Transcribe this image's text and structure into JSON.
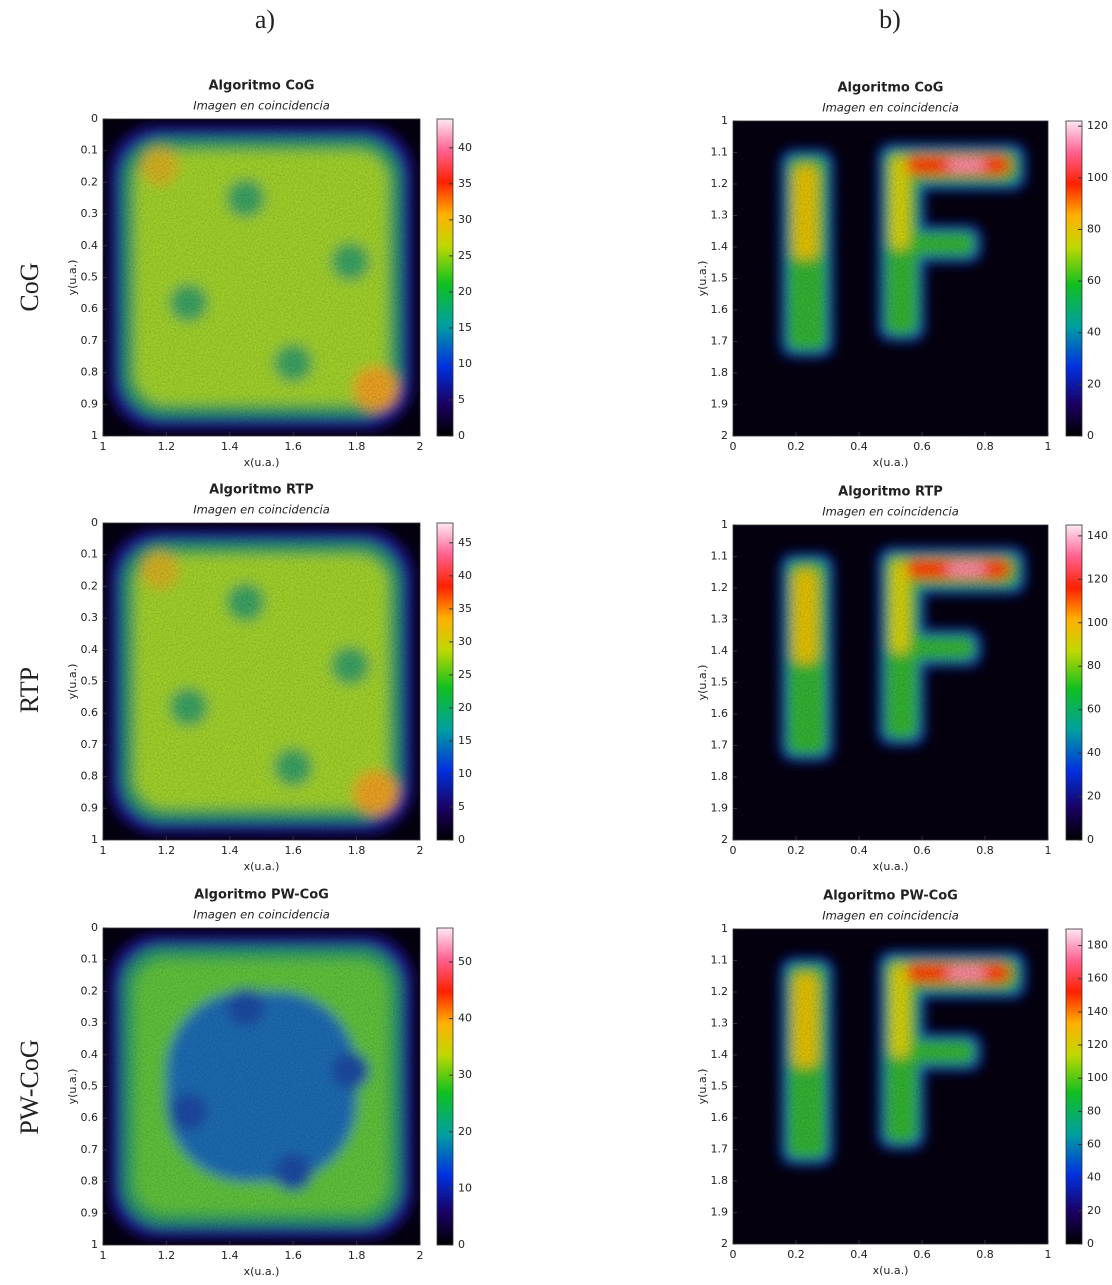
{
  "column_labels": [
    "a)",
    "b)"
  ],
  "row_labels": [
    "CoG",
    "RTP",
    "PW-CoG"
  ],
  "chart_data": [
    {
      "type": "heatmap",
      "title": "Algoritmo CoG",
      "subtitle": "Imagen en coincidencia",
      "xlabel": "x(u.a.)",
      "ylabel": "y(u.a.)",
      "xlim": [
        1,
        2
      ],
      "xticks": [
        1,
        1.2,
        1.4,
        1.6,
        1.8,
        2
      ],
      "ylim": [
        0,
        1
      ],
      "yticks": [
        0,
        0.1,
        0.2,
        0.3,
        0.4,
        0.5,
        0.6,
        0.7,
        0.8,
        0.9,
        1
      ],
      "y_reversed": true,
      "clim": [
        0,
        44
      ],
      "cticks": [
        0,
        5,
        10,
        15,
        20,
        25,
        30,
        35,
        40
      ]
    },
    {
      "type": "heatmap",
      "title": "Algoritmo CoG",
      "subtitle": "Imagen en coincidencia",
      "xlabel": "x(u.a.)",
      "ylabel": "y(u.a.)",
      "xlim": [
        0,
        1
      ],
      "xticks": [
        0,
        0.2,
        0.4,
        0.6,
        0.8,
        1
      ],
      "ylim": [
        1,
        2
      ],
      "yticks": [
        1,
        1.1,
        1.2,
        1.3,
        1.4,
        1.5,
        1.6,
        1.7,
        1.8,
        1.9,
        2
      ],
      "y_reversed": true,
      "clim": [
        0,
        122
      ],
      "cticks": [
        0,
        20,
        40,
        60,
        80,
        100,
        120
      ]
    },
    {
      "type": "heatmap",
      "title": "Algoritmo RTP",
      "subtitle": "Imagen en coincidencia",
      "xlabel": "x(u.a.)",
      "ylabel": "y(u.a.)",
      "xlim": [
        1,
        2
      ],
      "xticks": [
        1,
        1.2,
        1.4,
        1.6,
        1.8,
        2
      ],
      "ylim": [
        0,
        1
      ],
      "yticks": [
        0,
        0.1,
        0.2,
        0.3,
        0.4,
        0.5,
        0.6,
        0.7,
        0.8,
        0.9,
        1
      ],
      "y_reversed": true,
      "clim": [
        0,
        48
      ],
      "cticks": [
        0,
        5,
        10,
        15,
        20,
        25,
        30,
        35,
        40,
        45
      ]
    },
    {
      "type": "heatmap",
      "title": "Algoritmo RTP",
      "subtitle": "Imagen en coincidencia",
      "xlabel": "x(u.a.)",
      "ylabel": "y(u.a.)",
      "xlim": [
        0,
        1
      ],
      "xticks": [
        0,
        0.2,
        0.4,
        0.6,
        0.8,
        1
      ],
      "ylim": [
        1,
        2
      ],
      "yticks": [
        1,
        1.1,
        1.2,
        1.3,
        1.4,
        1.5,
        1.6,
        1.7,
        1.8,
        1.9,
        2
      ],
      "y_reversed": true,
      "clim": [
        0,
        145
      ],
      "cticks": [
        0,
        20,
        40,
        60,
        80,
        100,
        120,
        140
      ]
    },
    {
      "type": "heatmap",
      "title": "Algoritmo PW-CoG",
      "subtitle": "Imagen en coincidencia",
      "xlabel": "x(u.a.)",
      "ylabel": "y(u.a.)",
      "xlim": [
        1,
        2
      ],
      "xticks": [
        1,
        1.2,
        1.4,
        1.6,
        1.8,
        2
      ],
      "ylim": [
        0,
        1
      ],
      "yticks": [
        0,
        0.1,
        0.2,
        0.3,
        0.4,
        0.5,
        0.6,
        0.7,
        0.8,
        0.9,
        1
      ],
      "y_reversed": true,
      "clim": [
        0,
        56
      ],
      "cticks": [
        0,
        10,
        20,
        30,
        40,
        50
      ]
    },
    {
      "type": "heatmap",
      "title": "Algoritmo PW-CoG",
      "subtitle": "Imagen en coincidencia",
      "xlabel": "x(u.a.)",
      "ylabel": "y(u.a.)",
      "xlim": [
        0,
        1
      ],
      "xticks": [
        0,
        0.2,
        0.4,
        0.6,
        0.8,
        1
      ],
      "ylim": [
        1,
        2
      ],
      "yticks": [
        1,
        1.1,
        1.2,
        1.3,
        1.4,
        1.5,
        1.6,
        1.7,
        1.8,
        1.9,
        2
      ],
      "y_reversed": true,
      "clim": [
        0,
        190
      ],
      "cticks": [
        0,
        20,
        40,
        60,
        80,
        100,
        120,
        140,
        160,
        180
      ]
    }
  ]
}
